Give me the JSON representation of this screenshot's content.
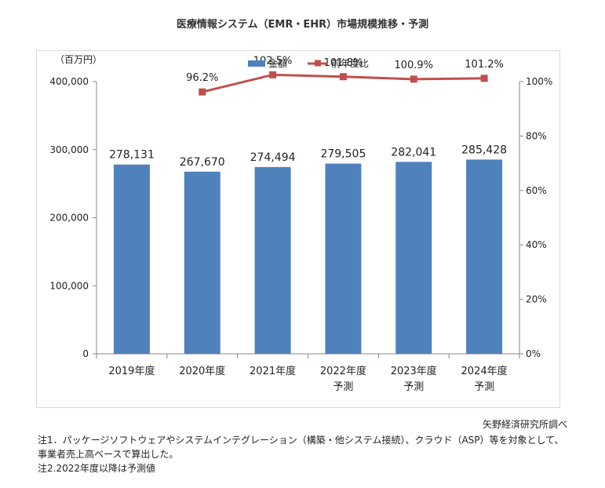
{
  "title": "医療情報システム（EMR・EHR）市場規模推移・予測",
  "source": "矢野経済研究所調べ",
  "notes": [
    "注1．パッケージソフトウェアやシステムインテグレーション（構築・他システム接続）、クラウド（ASP）等を対象として、",
    "事業者売上高ベースで算出した。",
    "注2.2022年度以降は予測値"
  ],
  "chart_data": {
    "type": "bar",
    "unit_label": "（百万円）",
    "categories": [
      [
        "2019年度"
      ],
      [
        "2020年度"
      ],
      [
        "2021年度"
      ],
      [
        "2022年度",
        "予測"
      ],
      [
        "2023年度",
        "予測"
      ],
      [
        "2024年度",
        "予測"
      ]
    ],
    "series": [
      {
        "name": "金額",
        "type": "bar",
        "axis": "left",
        "color": "#4f81bd",
        "values": [
          278131,
          267670,
          274494,
          279505,
          282041,
          285428
        ],
        "labels": [
          "278,131",
          "267,670",
          "274,494",
          "279,505",
          "282,041",
          "285,428"
        ]
      },
      {
        "name": "前年度比",
        "type": "line",
        "axis": "right",
        "color": "#c0504d",
        "values": [
          null,
          96.2,
          102.5,
          101.8,
          100.9,
          101.2
        ],
        "labels": [
          "",
          "96.2%",
          "102.5%",
          "101.8%",
          "100.9%",
          "101.2%"
        ]
      }
    ],
    "y_left": {
      "min": 0,
      "max": 400000,
      "ticks": [
        0,
        100000,
        200000,
        300000,
        400000
      ],
      "tick_labels": [
        "0",
        "100,000",
        "200,000",
        "300,000",
        "400,000"
      ]
    },
    "y_right": {
      "min": 0,
      "max": 100,
      "ticks": [
        0,
        20,
        40,
        60,
        80,
        100
      ],
      "tick_labels": [
        "0%",
        "20%",
        "40%",
        "60%",
        "80%",
        "100%"
      ]
    },
    "legend_position": "top-center",
    "grid": false
  }
}
